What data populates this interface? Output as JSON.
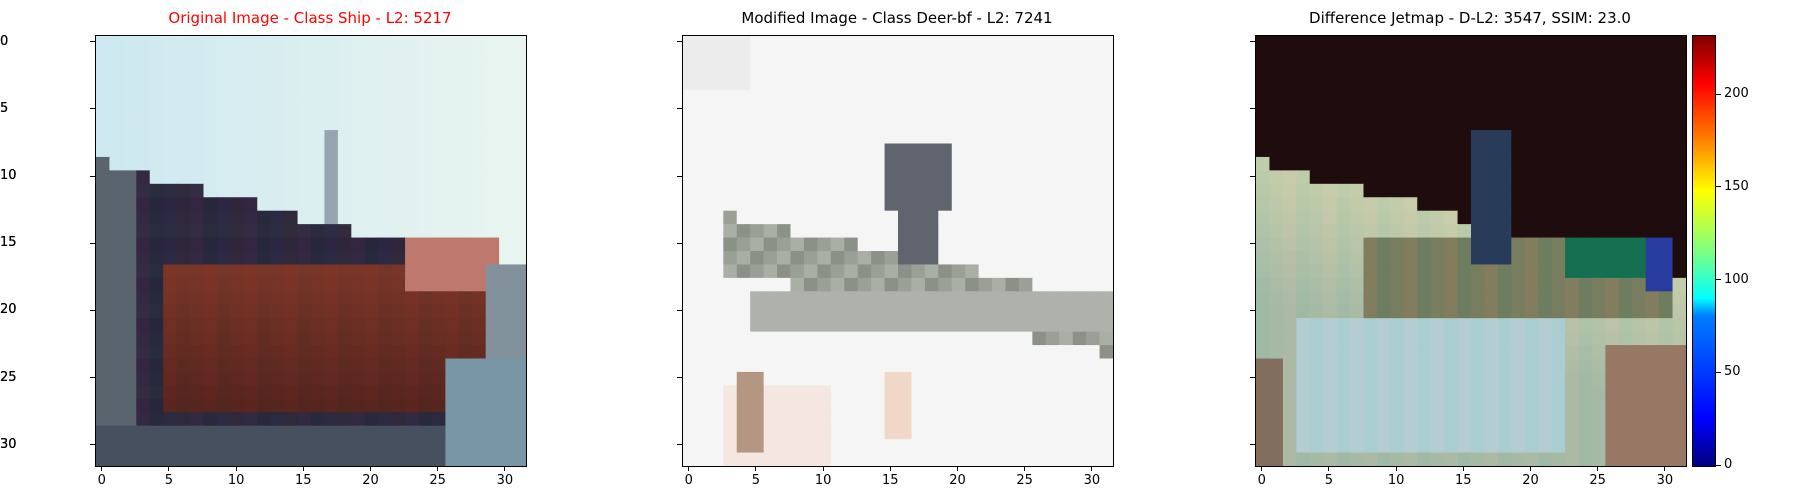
{
  "chart_data": [
    {
      "type": "heatmap",
      "title": "Original Image - Class Ship - L2: 5217",
      "title_color": "#ff0000",
      "image_size": 32,
      "xticks": [
        0,
        5,
        10,
        15,
        20,
        25,
        30
      ],
      "yticks": [
        0,
        5,
        10,
        15,
        20,
        25,
        30
      ],
      "xlim": [
        -0.5,
        31.5
      ],
      "ylim": [
        31.5,
        -0.5
      ],
      "content": "photo of a ship with dark hull on light sky background"
    },
    {
      "type": "heatmap",
      "title": "Modified Image - Class Deer-bf - L2: 7241",
      "title_color": "#000000",
      "image_size": 32,
      "xticks": [
        0,
        5,
        10,
        15,
        20,
        25,
        30
      ],
      "yticks": [
        0,
        5,
        10,
        15,
        20,
        25,
        30
      ],
      "xlim": [
        -0.5,
        31.5
      ],
      "ylim": [
        31.5,
        -0.5
      ],
      "content": "grey object on near-white background"
    },
    {
      "type": "heatmap",
      "title": "Difference Jetmap - D-L2: 3547, SSIM: 23.0",
      "title_color": "#000000",
      "image_size": 32,
      "xticks": [
        0,
        5,
        10,
        15,
        20,
        25,
        30
      ],
      "yticks": [
        0,
        5,
        10,
        15,
        20,
        25,
        30
      ],
      "xlim": [
        -0.5,
        31.5
      ],
      "ylim": [
        31.5,
        -0.5
      ],
      "colorbar": {
        "colormap": "jet",
        "range": [
          0,
          232
        ],
        "ticks": [
          0,
          50,
          100,
          150,
          200
        ]
      }
    }
  ]
}
